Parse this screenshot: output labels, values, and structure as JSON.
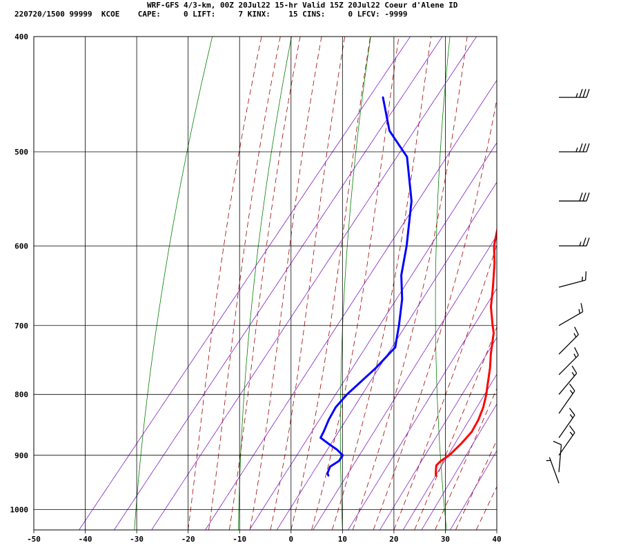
{
  "header": {
    "title": "WRF-GFS 4/3-km, 00Z 20Jul22 15-hr Valid 15Z 20Jul22 Coeur d'Alene ID",
    "info": "220720/1500 99999  KCOE    CAPE:     0 LIFT:     7 KINX:    15 CINS:     0 LFCV: -9999"
  },
  "chart_data": {
    "type": "line",
    "subtype": "skew-t log-p",
    "title": "WRF-GFS 4/3-km, 00Z 20Jul22 15-hr Valid 15Z 20Jul22 Coeur d'Alene ID",
    "xlabel": "",
    "ylabel": "",
    "x_scale": "temperature (skewed)",
    "y_scale": "log pressure (inverted)",
    "xlim": [
      -50,
      40
    ],
    "ylim": [
      1040,
      400
    ],
    "x_ticks": [
      -50,
      -40,
      -30,
      -20,
      -10,
      0,
      10,
      20,
      30,
      40
    ],
    "y_ticks": [
      400,
      500,
      600,
      700,
      800,
      900,
      1000
    ],
    "grid": true,
    "indices": {
      "CAPE": 0,
      "LIFT": 7,
      "KINX": 15,
      "CINS": 0,
      "LFCV": -9999
    },
    "series": [
      {
        "color": "#ff0000",
        "points": [
          [
            -17.3,
            450
          ],
          [
            -13.8,
            500
          ],
          [
            -7.5,
            550
          ],
          [
            -2.6,
            600
          ],
          [
            0,
            620
          ],
          [
            3.3,
            650
          ],
          [
            5.8,
            675
          ],
          [
            8.9,
            700
          ],
          [
            10.2,
            710
          ],
          [
            12.8,
            740
          ],
          [
            14.7,
            760
          ],
          [
            17.1,
            790
          ],
          [
            17.9,
            800
          ],
          [
            19.2,
            820
          ],
          [
            20.1,
            840
          ],
          [
            20.6,
            860
          ],
          [
            20.3,
            880
          ],
          [
            19.7,
            900
          ],
          [
            18.9,
            910
          ],
          [
            18.7,
            918
          ],
          [
            19.6,
            930
          ],
          [
            20.1,
            936
          ]
        ]
      },
      {
        "color": "#0000ff",
        "points": [
          [
            -46.2,
            450
          ],
          [
            -40.0,
            480
          ],
          [
            -32.7,
            505
          ],
          [
            -25.3,
            550
          ],
          [
            -19.6,
            600
          ],
          [
            -16.3,
            635
          ],
          [
            -12.6,
            665
          ],
          [
            -9.3,
            700
          ],
          [
            -7.8,
            718
          ],
          [
            -6.8,
            730
          ],
          [
            -7.5,
            760
          ],
          [
            -9.2,
            800
          ],
          [
            -9.5,
            820
          ],
          [
            -9.0,
            840
          ],
          [
            -8.2,
            860
          ],
          [
            -7.9,
            870
          ],
          [
            -5.5,
            880
          ],
          [
            -3.0,
            890
          ],
          [
            -1.0,
            900
          ],
          [
            -0.9,
            910
          ],
          [
            -1.8,
            920
          ],
          [
            -1.3,
            932
          ],
          [
            -0.8,
            936
          ]
        ]
      }
    ],
    "wind_barbs": [
      {
        "pressure": 450,
        "direction": 270,
        "speed_kt": 35
      },
      {
        "pressure": 500,
        "direction": 270,
        "speed_kt": 35
      },
      {
        "pressure": 550,
        "direction": 270,
        "speed_kt": 30
      },
      {
        "pressure": 600,
        "direction": 270,
        "speed_kt": 25
      },
      {
        "pressure": 650,
        "direction": 255,
        "speed_kt": 15
      },
      {
        "pressure": 700,
        "direction": 240,
        "speed_kt": 15
      },
      {
        "pressure": 740,
        "direction": 225,
        "speed_kt": 15
      },
      {
        "pressure": 770,
        "direction": 225,
        "speed_kt": 15
      },
      {
        "pressure": 800,
        "direction": 220,
        "speed_kt": 15
      },
      {
        "pressure": 830,
        "direction": 215,
        "speed_kt": 15
      },
      {
        "pressure": 870,
        "direction": 215,
        "speed_kt": 15
      },
      {
        "pressure": 900,
        "direction": 215,
        "speed_kt": 15
      },
      {
        "pressure": 930,
        "direction": 185,
        "speed_kt": 10
      },
      {
        "pressure": 950,
        "direction": 160,
        "speed_kt": 5
      }
    ]
  }
}
